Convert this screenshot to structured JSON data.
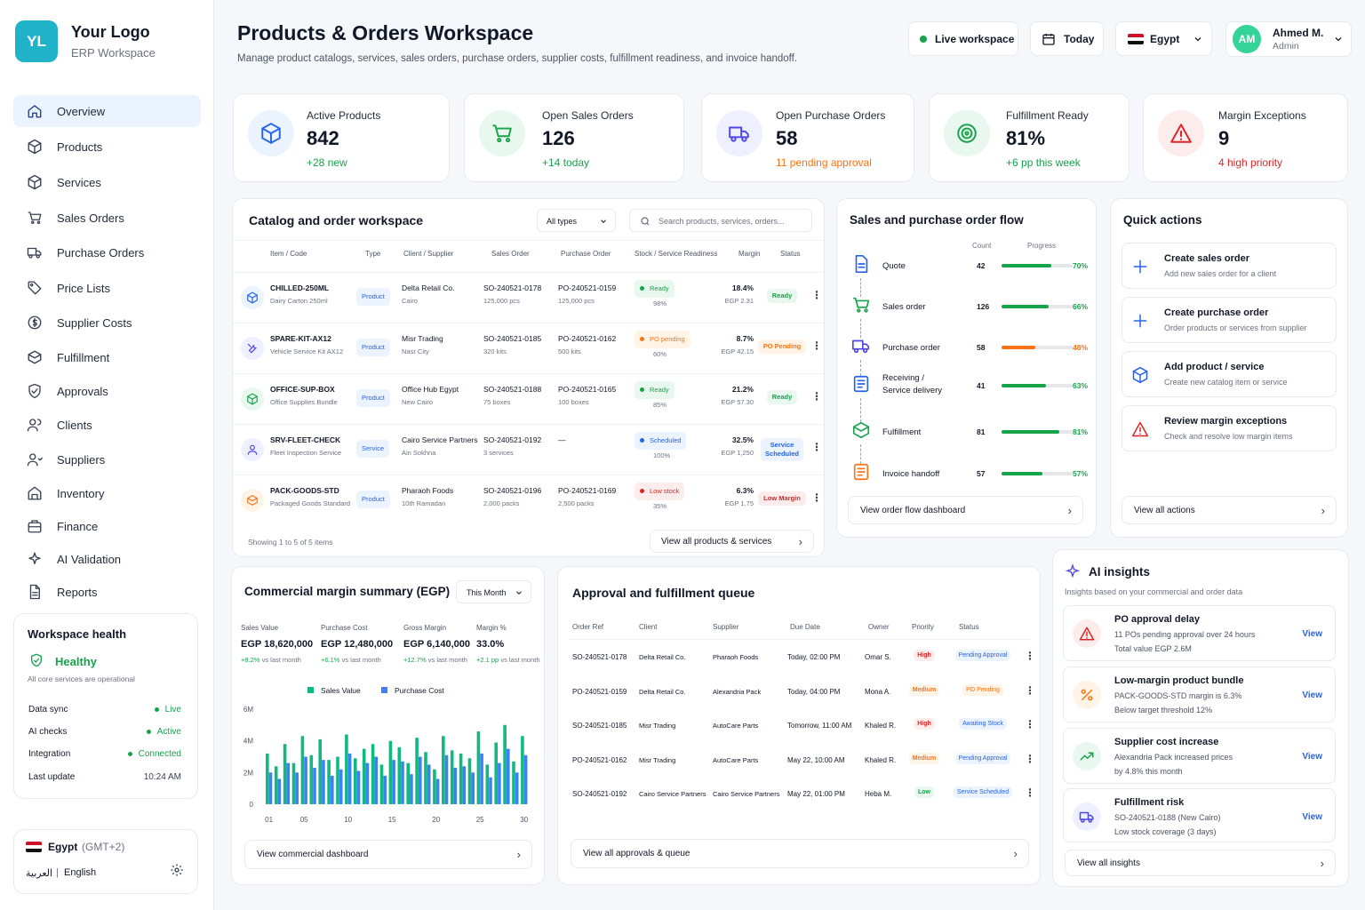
{
  "brand": {
    "initials": "YL",
    "name": "Your Logo",
    "subtitle": "ERP Workspace"
  },
  "nav": [
    {
      "label": "Overview",
      "icon": "home-icon",
      "active": true
    },
    {
      "label": "Products",
      "icon": "box-icon"
    },
    {
      "label": "Services",
      "icon": "cube-icon"
    },
    {
      "label": "Sales Orders",
      "icon": "cart-icon"
    },
    {
      "label": "Purchase Orders",
      "icon": "truck-icon"
    },
    {
      "label": "Price Lists",
      "icon": "tag-icon"
    },
    {
      "label": "Supplier Costs",
      "icon": "dollar-icon"
    },
    {
      "label": "Fulfillment",
      "icon": "package-icon"
    },
    {
      "label": "Approvals",
      "icon": "shield-check-icon"
    },
    {
      "label": "Clients",
      "icon": "users-icon"
    },
    {
      "label": "Suppliers",
      "icon": "user-group-icon"
    },
    {
      "label": "Inventory",
      "icon": "warehouse-icon"
    },
    {
      "label": "Finance",
      "icon": "briefcase-icon"
    },
    {
      "label": "AI Validation",
      "icon": "sparkle-icon"
    },
    {
      "label": "Reports",
      "icon": "document-icon"
    }
  ],
  "health": {
    "title": "Workspace health",
    "status": "Healthy",
    "note": "All core services are operational",
    "rows": [
      {
        "label": "Data sync",
        "value": "Live"
      },
      {
        "label": "AI checks",
        "value": "Active"
      },
      {
        "label": "Integration",
        "value": "Connected"
      },
      {
        "label": "Last update",
        "value": "10:24 AM"
      }
    ]
  },
  "locale": {
    "country": "Egypt",
    "tz": "(GMT+2)",
    "lang_ar": "العربية",
    "sep": "|",
    "lang_en": "English"
  },
  "header": {
    "title": "Products & Orders Workspace",
    "subtitle": "Manage product catalogs, services, sales orders, purchase orders, supplier costs, fulfillment readiness, and invoice handoff.",
    "live": "Live workspace",
    "date": "Today",
    "country": "Egypt",
    "user_initials": "AM",
    "user_name": "Ahmed M.",
    "user_role": "Admin"
  },
  "kpis": [
    {
      "label": "Active Products",
      "value": "842",
      "sub": "+28 new",
      "tone": "green"
    },
    {
      "label": "Open Sales Orders",
      "value": "126",
      "sub": "+14 today",
      "tone": "green"
    },
    {
      "label": "Open Purchase Orders",
      "value": "58",
      "sub": "11 pending approval",
      "tone": "orange"
    },
    {
      "label": "Fulfillment Ready",
      "value": "81%",
      "sub": "+6 pp this week",
      "tone": "green"
    },
    {
      "label": "Margin Exceptions",
      "value": "9",
      "sub": "4 high priority",
      "tone": "red"
    }
  ],
  "catalog": {
    "title": "Catalog and order workspace",
    "filter": "All types",
    "search_placeholder": "Search products, services, orders...",
    "headers": [
      "Item / Code",
      "Type",
      "Client / Supplier",
      "Sales Order",
      "Purchase Order",
      "Stock / Service Readiness",
      "Margin",
      "Status"
    ],
    "rows": [
      {
        "code": "CHILLED-250ML",
        "desc": "Dairy Carton 250ml",
        "type": "Product",
        "client": "Delta Retail Co.",
        "city": "Cairo",
        "so": "SO-240521-0178",
        "so_qty": "125,000 pcs",
        "po": "PO-240521-0159",
        "po_qty": "125,000 pcs",
        "ready": "Ready",
        "ready_pct": "98%",
        "ready_tone": "green",
        "margin": "18.4%",
        "margin_sub": "EGP 2.31",
        "status": "Ready",
        "status_tone": "green"
      },
      {
        "code": "SPARE-KIT-AX12",
        "desc": "Vehicle Service Kit AX12",
        "type": "Product",
        "client": "Misr Trading",
        "city": "Nasr City",
        "so": "SO-240521-0185",
        "so_qty": "320 kits",
        "po": "PO-240521-0162",
        "po_qty": "500 kits",
        "ready": "PO pending",
        "ready_pct": "60%",
        "ready_tone": "orange",
        "margin": "8.7%",
        "margin_sub": "EGP 42.15",
        "status": "PO Pending",
        "status_tone": "orange"
      },
      {
        "code": "OFFICE-SUP-BOX",
        "desc": "Office Supplies Bundle",
        "type": "Product",
        "client": "Office Hub Egypt",
        "city": "New Cairo",
        "so": "SO-240521-0188",
        "so_qty": "75 boxes",
        "po": "PO-240521-0165",
        "po_qty": "100 boxes",
        "ready": "Ready",
        "ready_pct": "85%",
        "ready_tone": "green",
        "margin": "21.2%",
        "margin_sub": "EGP 57.30",
        "status": "Ready",
        "status_tone": "green"
      },
      {
        "code": "SRV-FLEET-CHECK",
        "desc": "Fleet Inspection Service",
        "type": "Service",
        "client": "Cairo Service Partners",
        "city": "Ain Sokhna",
        "so": "SO-240521-0192",
        "so_qty": "3 services",
        "po": "—",
        "po_qty": "",
        "ready": "Scheduled",
        "ready_pct": "100%",
        "ready_tone": "blue",
        "margin": "32.5%",
        "margin_sub": "EGP 1,250",
        "status": "Service Scheduled",
        "status_tone": "blue"
      },
      {
        "code": "PACK-GOODS-STD",
        "desc": "Packaged Goods Standard",
        "type": "Product",
        "client": "Pharaoh Foods",
        "city": "10th Ramadan",
        "so": "SO-240521-0196",
        "so_qty": "2,000 packs",
        "po": "PO-240521-0169",
        "po_qty": "2,500 packs",
        "ready": "Low stock",
        "ready_pct": "35%",
        "ready_tone": "red",
        "margin": "6.3%",
        "margin_sub": "EGP 1.75",
        "status": "Low Margin",
        "status_tone": "red"
      }
    ],
    "showing": "Showing 1 to 5 of 5 items",
    "view_all": "View all products & services"
  },
  "flow": {
    "title": "Sales and purchase order flow",
    "count_label": "Count",
    "progress_label": "Progress",
    "steps": [
      {
        "label": "Quote",
        "count": "42",
        "pct": 70,
        "pct_label": "70%",
        "color": "#16a34a"
      },
      {
        "label": "Sales order",
        "count": "126",
        "pct": 66,
        "pct_label": "66%",
        "color": "#16a34a"
      },
      {
        "label": "Purchase order",
        "count": "58",
        "pct": 48,
        "pct_label": "48%",
        "color": "#f97316"
      },
      {
        "label": "Receiving / Service delivery",
        "count": "41",
        "pct": 63,
        "pct_label": "63%",
        "color": "#16a34a"
      },
      {
        "label": "Fulfillment",
        "count": "81",
        "pct": 81,
        "pct_label": "81%",
        "color": "#16a34a"
      },
      {
        "label": "Invoice handoff",
        "count": "57",
        "pct": 57,
        "pct_label": "57%",
        "color": "#16a34a"
      }
    ],
    "view": "View order flow dashboard"
  },
  "quick": {
    "title": "Quick actions",
    "items": [
      {
        "title": "Create sales order",
        "desc": "Add new sales order for a client",
        "icon": "plus-icon"
      },
      {
        "title": "Create purchase order",
        "desc": "Order products or services from supplier",
        "icon": "plus-icon"
      },
      {
        "title": "Add product / service",
        "desc": "Create new catalog item or service",
        "icon": "cube-icon"
      },
      {
        "title": "Review margin exceptions",
        "desc": "Check and resolve low margin items",
        "icon": "warning-icon"
      }
    ],
    "view": "View all actions"
  },
  "margin": {
    "title": "Commercial margin summary (EGP)",
    "period": "This Month",
    "stats": [
      {
        "label": "Sales Value",
        "value": "EGP 18,620,000",
        "delta": "+8.2%",
        "note": "vs last month"
      },
      {
        "label": "Purchase Cost",
        "value": "EGP 12,480,000",
        "delta": "+6.1%",
        "note": "vs last month"
      },
      {
        "label": "Gross Margin",
        "value": "EGP 6,140,000",
        "delta": "+12.7%",
        "note": "vs last month"
      },
      {
        "label": "Margin %",
        "value": "33.0%",
        "delta": "+2.1 pp",
        "note": "vs last month"
      }
    ],
    "view": "View commercial dashboard"
  },
  "chart_data": {
    "type": "bar",
    "legend": [
      "Sales Value",
      "Purchase Cost"
    ],
    "x": [
      1,
      2,
      3,
      4,
      5,
      6,
      7,
      8,
      9,
      10,
      11,
      12,
      13,
      14,
      15,
      16,
      17,
      18,
      19,
      20,
      21,
      22,
      23,
      24,
      25,
      26,
      27,
      28,
      29,
      30
    ],
    "xticks": [
      "01",
      "05",
      "10",
      "15",
      "20",
      "25",
      "30"
    ],
    "yticks": [
      "0",
      "2M",
      "4M",
      "6M"
    ],
    "ylim": [
      0,
      6
    ],
    "series": [
      {
        "name": "Sales Value",
        "color": "#10b981",
        "values": [
          3.2,
          2.4,
          3.8,
          2.6,
          4.3,
          3.1,
          4.1,
          2.8,
          3.0,
          4.4,
          2.9,
          3.5,
          3.8,
          2.5,
          4.0,
          3.6,
          2.6,
          4.2,
          3.3,
          2.2,
          4.3,
          3.4,
          3.2,
          2.9,
          4.6,
          2.5,
          3.9,
          5.0,
          2.7,
          4.3
        ]
      },
      {
        "name": "Purchase Cost",
        "color": "#3b82f6",
        "values": [
          2.0,
          1.6,
          2.6,
          2.0,
          3.0,
          2.3,
          2.8,
          1.8,
          2.2,
          3.2,
          2.1,
          2.6,
          3.0,
          1.8,
          2.8,
          2.7,
          1.9,
          3.0,
          2.5,
          1.6,
          3.1,
          2.3,
          2.4,
          2.0,
          3.2,
          1.7,
          2.6,
          3.5,
          2.0,
          3.1
        ]
      }
    ]
  },
  "queue": {
    "title": "Approval and fulfillment queue",
    "headers": [
      "Order Ref",
      "Client",
      "Supplier",
      "Due Date",
      "Owner",
      "Priority",
      "Status"
    ],
    "rows": [
      {
        "ref": "SO-240521-0178",
        "client": "Delta Retail Co.",
        "supplier": "Pharaoh Foods",
        "due": "Today, 02:00 PM",
        "owner": "Omar S.",
        "priority": "High",
        "ptone": "red",
        "status": "Pending Approval",
        "stone": "blue"
      },
      {
        "ref": "PO-240521-0159",
        "client": "Delta Retail Co.",
        "supplier": "Alexandria Pack",
        "due": "Today, 04:00 PM",
        "owner": "Mona A.",
        "priority": "Medium",
        "ptone": "orange",
        "status": "PO Pending",
        "stone": "orange"
      },
      {
        "ref": "SO-240521-0185",
        "client": "Misr Trading",
        "supplier": "AutoCare Parts",
        "due": "Tomorrow, 11:00 AM",
        "owner": "Khaled R.",
        "priority": "High",
        "ptone": "red",
        "status": "Awaiting Stock",
        "stone": "blue"
      },
      {
        "ref": "PO-240521-0162",
        "client": "Misr Trading",
        "supplier": "AutoCare Parts",
        "due": "May 22, 10:00 AM",
        "owner": "Khaled R.",
        "priority": "Medium",
        "ptone": "orange",
        "status": "Pending Approval",
        "stone": "blue"
      },
      {
        "ref": "SO-240521-0192",
        "client": "Cairo Service Partners",
        "supplier": "Cairo Service Partners",
        "due": "May 22, 01:00 PM",
        "owner": "Heba M.",
        "priority": "Low",
        "ptone": "green",
        "status": "Service Scheduled",
        "stone": "blue"
      }
    ],
    "view": "View all approvals & queue"
  },
  "insights": {
    "title": "AI insights",
    "subtitle": "Insights based on your commercial and order data",
    "items": [
      {
        "title": "PO approval delay",
        "l1": "11 POs pending approval over 24 hours",
        "l2": "Total value EGP 2.6M",
        "view": "View",
        "icon": "warning-icon"
      },
      {
        "title": "Low-margin product bundle",
        "l1": "PACK-GOODS-STD margin is 6.3%",
        "l2": "Below target threshold 12%",
        "view": "View",
        "icon": "percent-icon"
      },
      {
        "title": "Supplier cost increase",
        "l1": "Alexandria Pack increased prices",
        "l2": "by 4.8% this month",
        "view": "View",
        "icon": "trend-up-icon"
      },
      {
        "title": "Fulfillment risk",
        "l1": "SO-240521-0188 (New Cairo)",
        "l2": "Low stock coverage (3 days)",
        "view": "View",
        "icon": "truck-icon"
      }
    ],
    "view": "View all insights"
  }
}
